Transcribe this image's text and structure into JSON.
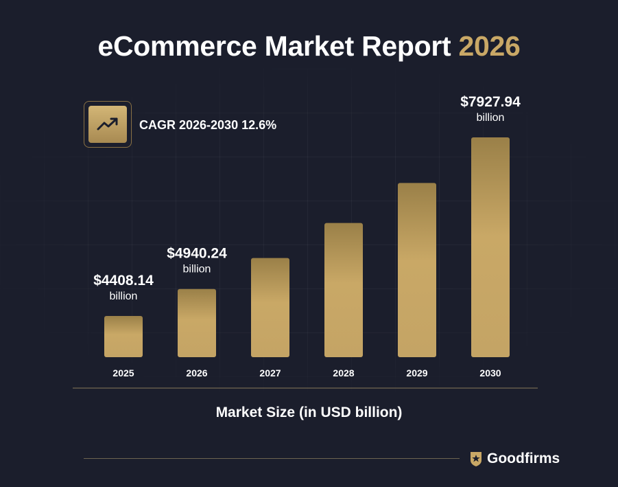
{
  "title": {
    "main": "eCommerce Market Report ",
    "accent": "2026"
  },
  "cagr": {
    "label": "CAGR 2026-2030 12.6%",
    "icon": "trend-up-icon"
  },
  "colors": {
    "background": "#1b1e2c",
    "accent": "#c9a866",
    "bar_top": "#9a8048",
    "bar_bottom": "#c9a866"
  },
  "chart_data": {
    "type": "bar",
    "categories": [
      "2025",
      "2026",
      "2027",
      "2028",
      "2029",
      "2030"
    ],
    "values": [
      4408.14,
      4940.24,
      5550,
      6240,
      7030,
      7927.94
    ],
    "data_labels": [
      {
        "index": 0,
        "value": "$4408.14",
        "unit": "billion"
      },
      {
        "index": 1,
        "value": "$4940.24",
        "unit": "billion"
      },
      {
        "index": 5,
        "value": "$7927.94",
        "unit": "billion"
      }
    ],
    "xlabel": "Market Size (in USD billion)",
    "ylabel": "",
    "grid": true
  },
  "footer": {
    "brand": "Goodfirms",
    "icon": "goodfirms-logo-icon"
  }
}
